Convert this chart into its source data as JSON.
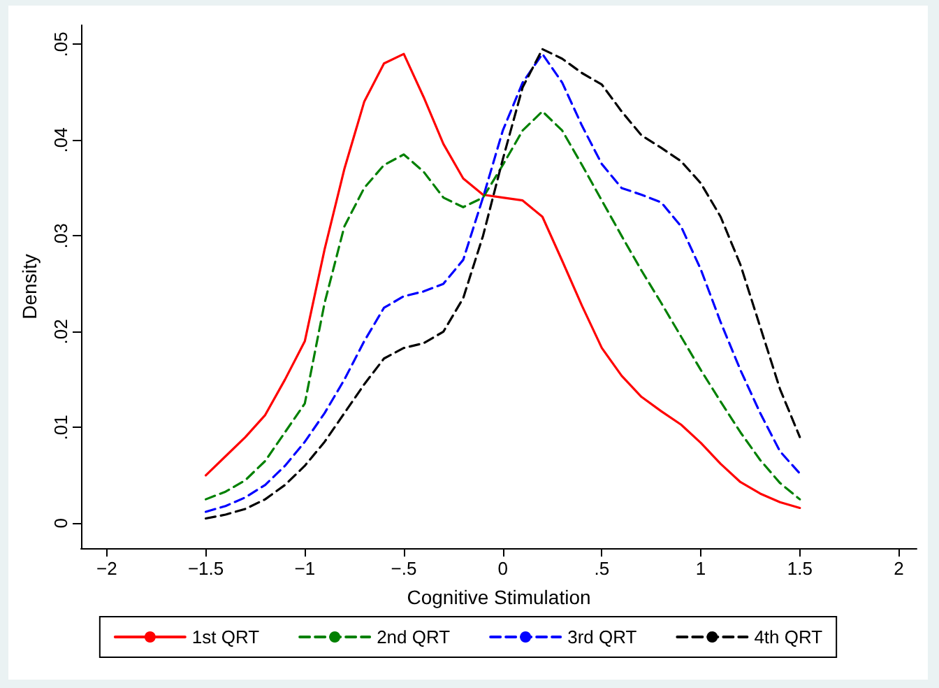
{
  "chart_data": {
    "type": "line",
    "xlabel": "Cognitive Stimulation",
    "ylabel": "Density",
    "x": [
      -1.5,
      -1.4,
      -1.3,
      -1.2,
      -1.1,
      -1.0,
      -0.9,
      -0.8,
      -0.7,
      -0.6,
      -0.5,
      -0.4,
      -0.3,
      -0.2,
      -0.1,
      0,
      0.1,
      0.2,
      0.3,
      0.4,
      0.5,
      0.6,
      0.7,
      0.8,
      0.9,
      1.0,
      1.1,
      1.2,
      1.3,
      1.4,
      1.5
    ],
    "series": [
      {
        "name": "1st QRT",
        "color": "#ff0000",
        "line_style": "solid",
        "values": [
          0.005,
          0.007,
          0.009,
          0.0113,
          0.015,
          0.019,
          0.0286,
          0.037,
          0.044,
          0.048,
          0.049,
          0.0445,
          0.0396,
          0.036,
          0.0343,
          0.034,
          0.0337,
          0.032,
          0.0274,
          0.0227,
          0.0183,
          0.0154,
          0.0132,
          0.0117,
          0.0103,
          0.0084,
          0.0062,
          0.0043,
          0.0031,
          0.0022,
          0.0016
        ]
      },
      {
        "name": "2nd QRT",
        "color": "#008000",
        "line_style": "dashed",
        "values": [
          0.0025,
          0.0033,
          0.0045,
          0.0065,
          0.0095,
          0.0125,
          0.023,
          0.031,
          0.035,
          0.0374,
          0.0385,
          0.0367,
          0.034,
          0.033,
          0.034,
          0.0374,
          0.041,
          0.043,
          0.041,
          0.0374,
          0.0337,
          0.03,
          0.0264,
          0.023,
          0.0195,
          0.016,
          0.0127,
          0.0095,
          0.0066,
          0.0042,
          0.0025
        ]
      },
      {
        "name": "3rd QRT",
        "color": "#0000ff",
        "line_style": "dashed",
        "values": [
          0.0012,
          0.0018,
          0.0027,
          0.004,
          0.006,
          0.0085,
          0.0115,
          0.015,
          0.019,
          0.0225,
          0.0237,
          0.0242,
          0.025,
          0.0275,
          0.034,
          0.041,
          0.046,
          0.049,
          0.046,
          0.0415,
          0.0375,
          0.035,
          0.0343,
          0.0335,
          0.031,
          0.0265,
          0.021,
          0.016,
          0.0115,
          0.0075,
          0.0052
        ]
      },
      {
        "name": "4th QRT",
        "color": "#000000",
        "line_style": "dashed",
        "values": [
          0.0005,
          0.0009,
          0.0015,
          0.0025,
          0.004,
          0.006,
          0.0085,
          0.0115,
          0.0145,
          0.0172,
          0.0183,
          0.0188,
          0.02,
          0.0235,
          0.03,
          0.038,
          0.0455,
          0.0495,
          0.0485,
          0.047,
          0.0458,
          0.043,
          0.0405,
          0.0392,
          0.0378,
          0.0355,
          0.032,
          0.027,
          0.0205,
          0.014,
          0.009
        ]
      }
    ],
    "xlim": [
      -2.13,
      2.09
    ],
    "xticks": [
      {
        "value": -2,
        "label": "−2"
      },
      {
        "value": -1.5,
        "label": "−1.5"
      },
      {
        "value": -1,
        "label": "−1"
      },
      {
        "value": -0.5,
        "label": "−.5"
      },
      0,
      {
        "value": 0.5,
        "label": ".5"
      },
      1,
      {
        "value": 1.5,
        "label": "1.5"
      },
      2
    ],
    "ylim": [
      -0.0026,
      0.052
    ],
    "yticks": [
      0,
      {
        "value": 0.01,
        "label": ".01"
      },
      {
        "value": 0.02,
        "label": ".02"
      },
      {
        "value": 0.03,
        "label": ".03"
      },
      {
        "value": 0.04,
        "label": ".04"
      },
      {
        "value": 0.05,
        "label": ".05"
      }
    ],
    "legend": "bottom",
    "marker": "none"
  }
}
